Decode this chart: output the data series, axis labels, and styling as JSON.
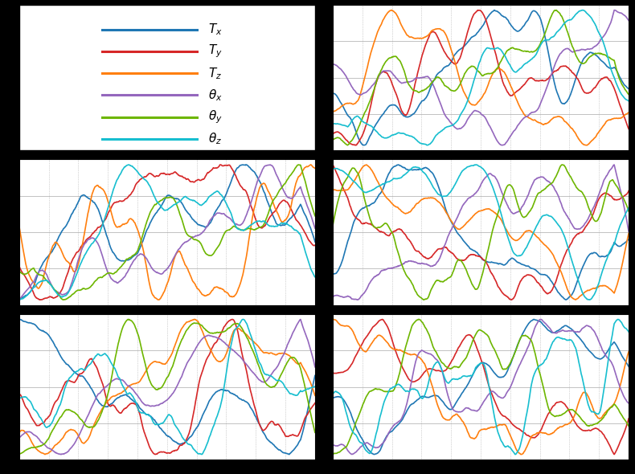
{
  "colors": [
    "#1f77b4",
    "#d62728",
    "#ff7f0e",
    "#9467bd",
    "#6db600",
    "#17becf"
  ],
  "legend_labels": [
    "$T_x$",
    "$T_y$",
    "$T_z$",
    "$\\theta_x$",
    "$\\theta_y$",
    "$\\theta_z$"
  ],
  "n_points": 800,
  "background": "#000000",
  "plot_bg": "#ffffff",
  "grid_color": "#aaaaaa",
  "grid_style": ":",
  "linewidth": 1.2,
  "figsize": [
    7.9,
    5.9
  ],
  "dpi": 100
}
